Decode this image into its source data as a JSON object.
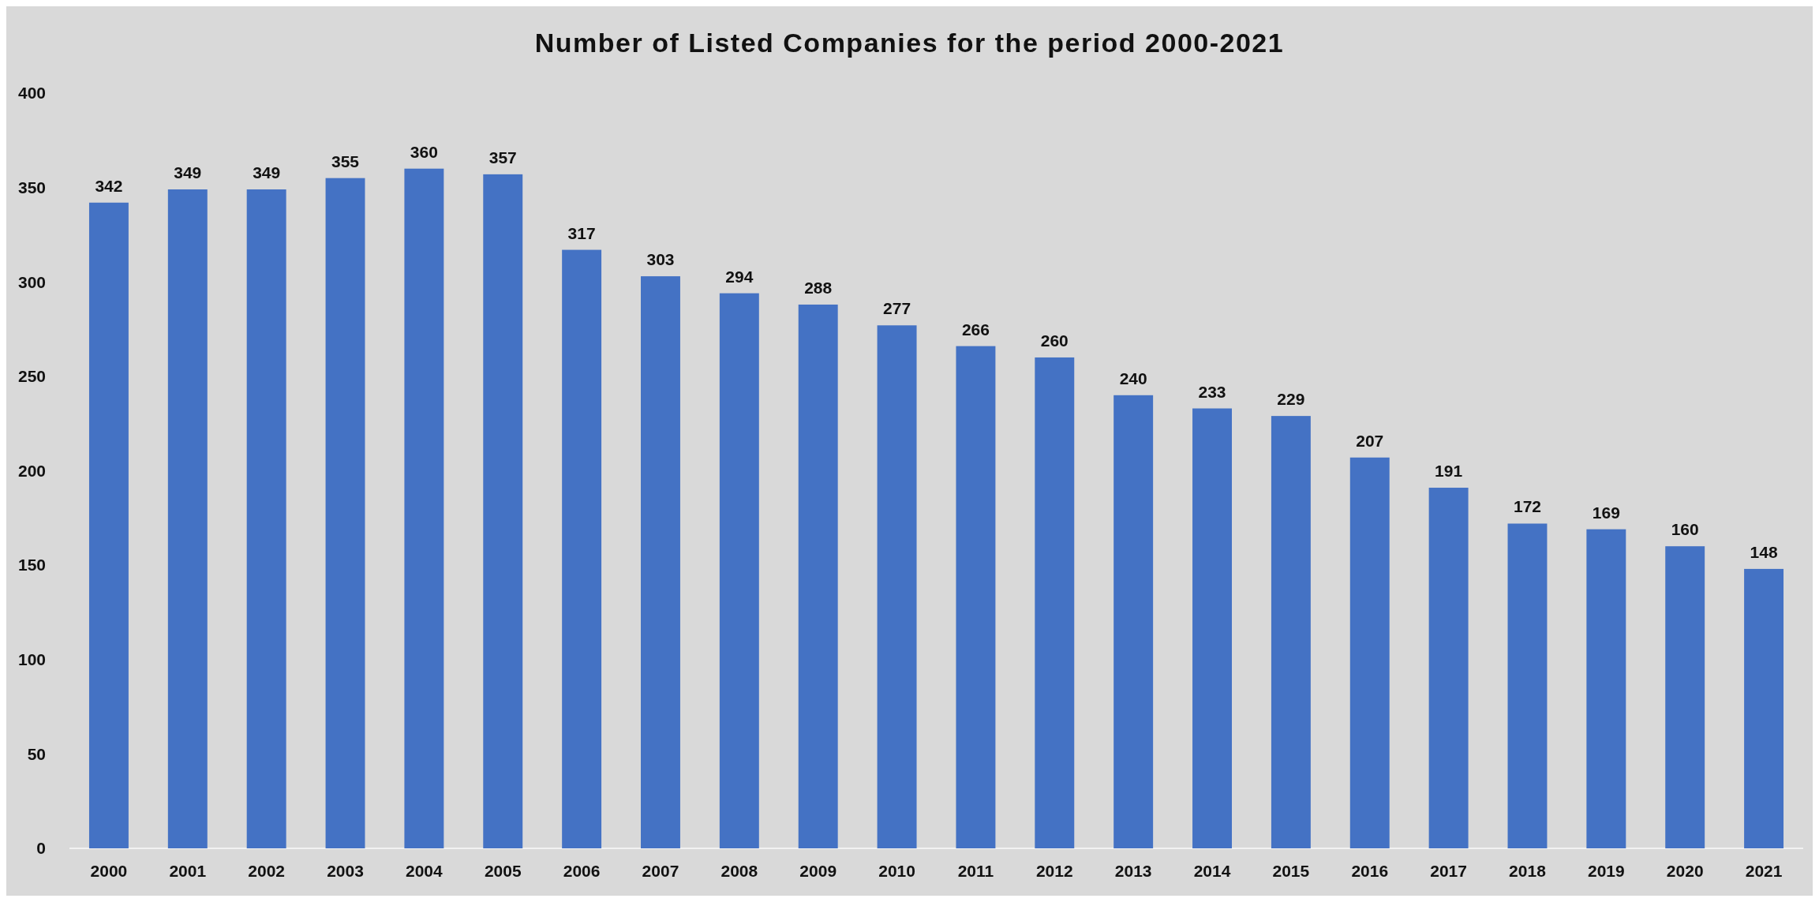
{
  "chart_data": {
    "type": "bar",
    "title": "Number of Listed Companies  for the period 2000-2021",
    "categories": [
      "2000",
      "2001",
      "2002",
      "2003",
      "2004",
      "2005",
      "2006",
      "2007",
      "2008",
      "2009",
      "2010",
      "2011",
      "2012",
      "2013",
      "2014",
      "2015",
      "2016",
      "2017",
      "2018",
      "2019",
      "2020",
      "2021"
    ],
    "values": [
      342,
      349,
      349,
      355,
      360,
      357,
      317,
      303,
      294,
      288,
      277,
      266,
      260,
      240,
      233,
      229,
      207,
      191,
      172,
      169,
      160,
      148
    ],
    "color": "#4472c4",
    "ylim": [
      0,
      400
    ],
    "yticks": [
      0,
      50,
      100,
      150,
      200,
      250,
      300,
      350,
      400
    ],
    "grid": false,
    "data_labels": true
  }
}
